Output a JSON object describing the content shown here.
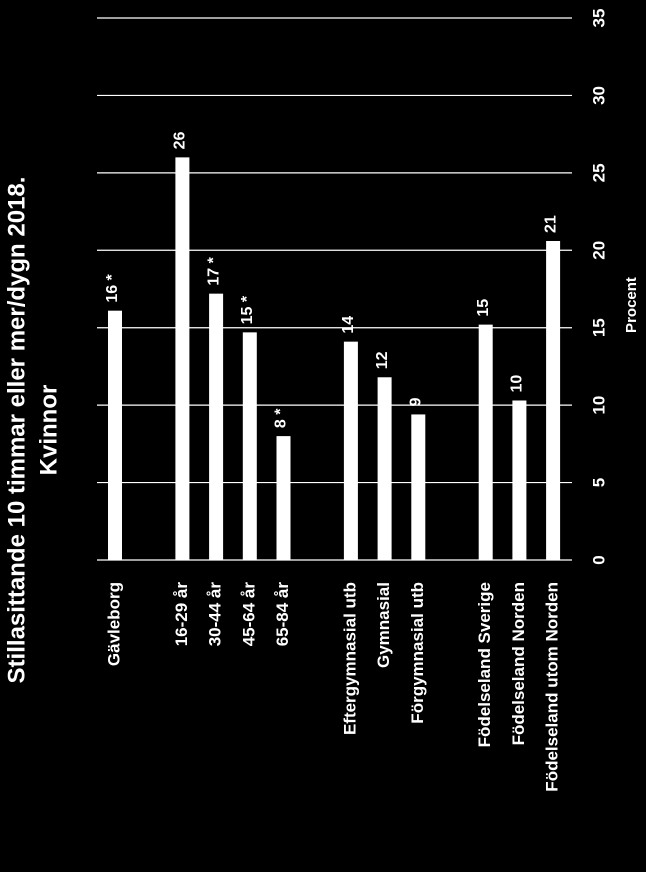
{
  "chart_data": {
    "type": "bar",
    "title": "Stillasittande 10 timmar eller mer/dygn 2018.",
    "subtitle": "Kvinnor",
    "y_label": "Procent",
    "categories": [
      "Gävleborg",
      null,
      "16-29 år",
      "30-44 år",
      "45-64 år",
      "65-84 år",
      null,
      "Eftergymnasial utb",
      "Gymnasial",
      "Förgymnasial utb",
      null,
      "Födelseland Sverige",
      "Födelseland Norden",
      "Födelseland utom Norden"
    ],
    "values": [
      16.1,
      null,
      26,
      17.2,
      14.7,
      8,
      null,
      14.1,
      11.8,
      9.4,
      null,
      15.2,
      10.3,
      20.6
    ],
    "value_labels": [
      "16 *",
      null,
      "26",
      "17 *",
      "15 *",
      "8 *",
      null,
      "14",
      "12",
      "9",
      null,
      "15",
      "10",
      "21"
    ],
    "color": "#ffffff",
    "ylim": [
      0,
      35
    ],
    "yticks": [
      0,
      5,
      10,
      15,
      20,
      25,
      30,
      35
    ],
    "grid": true
  }
}
